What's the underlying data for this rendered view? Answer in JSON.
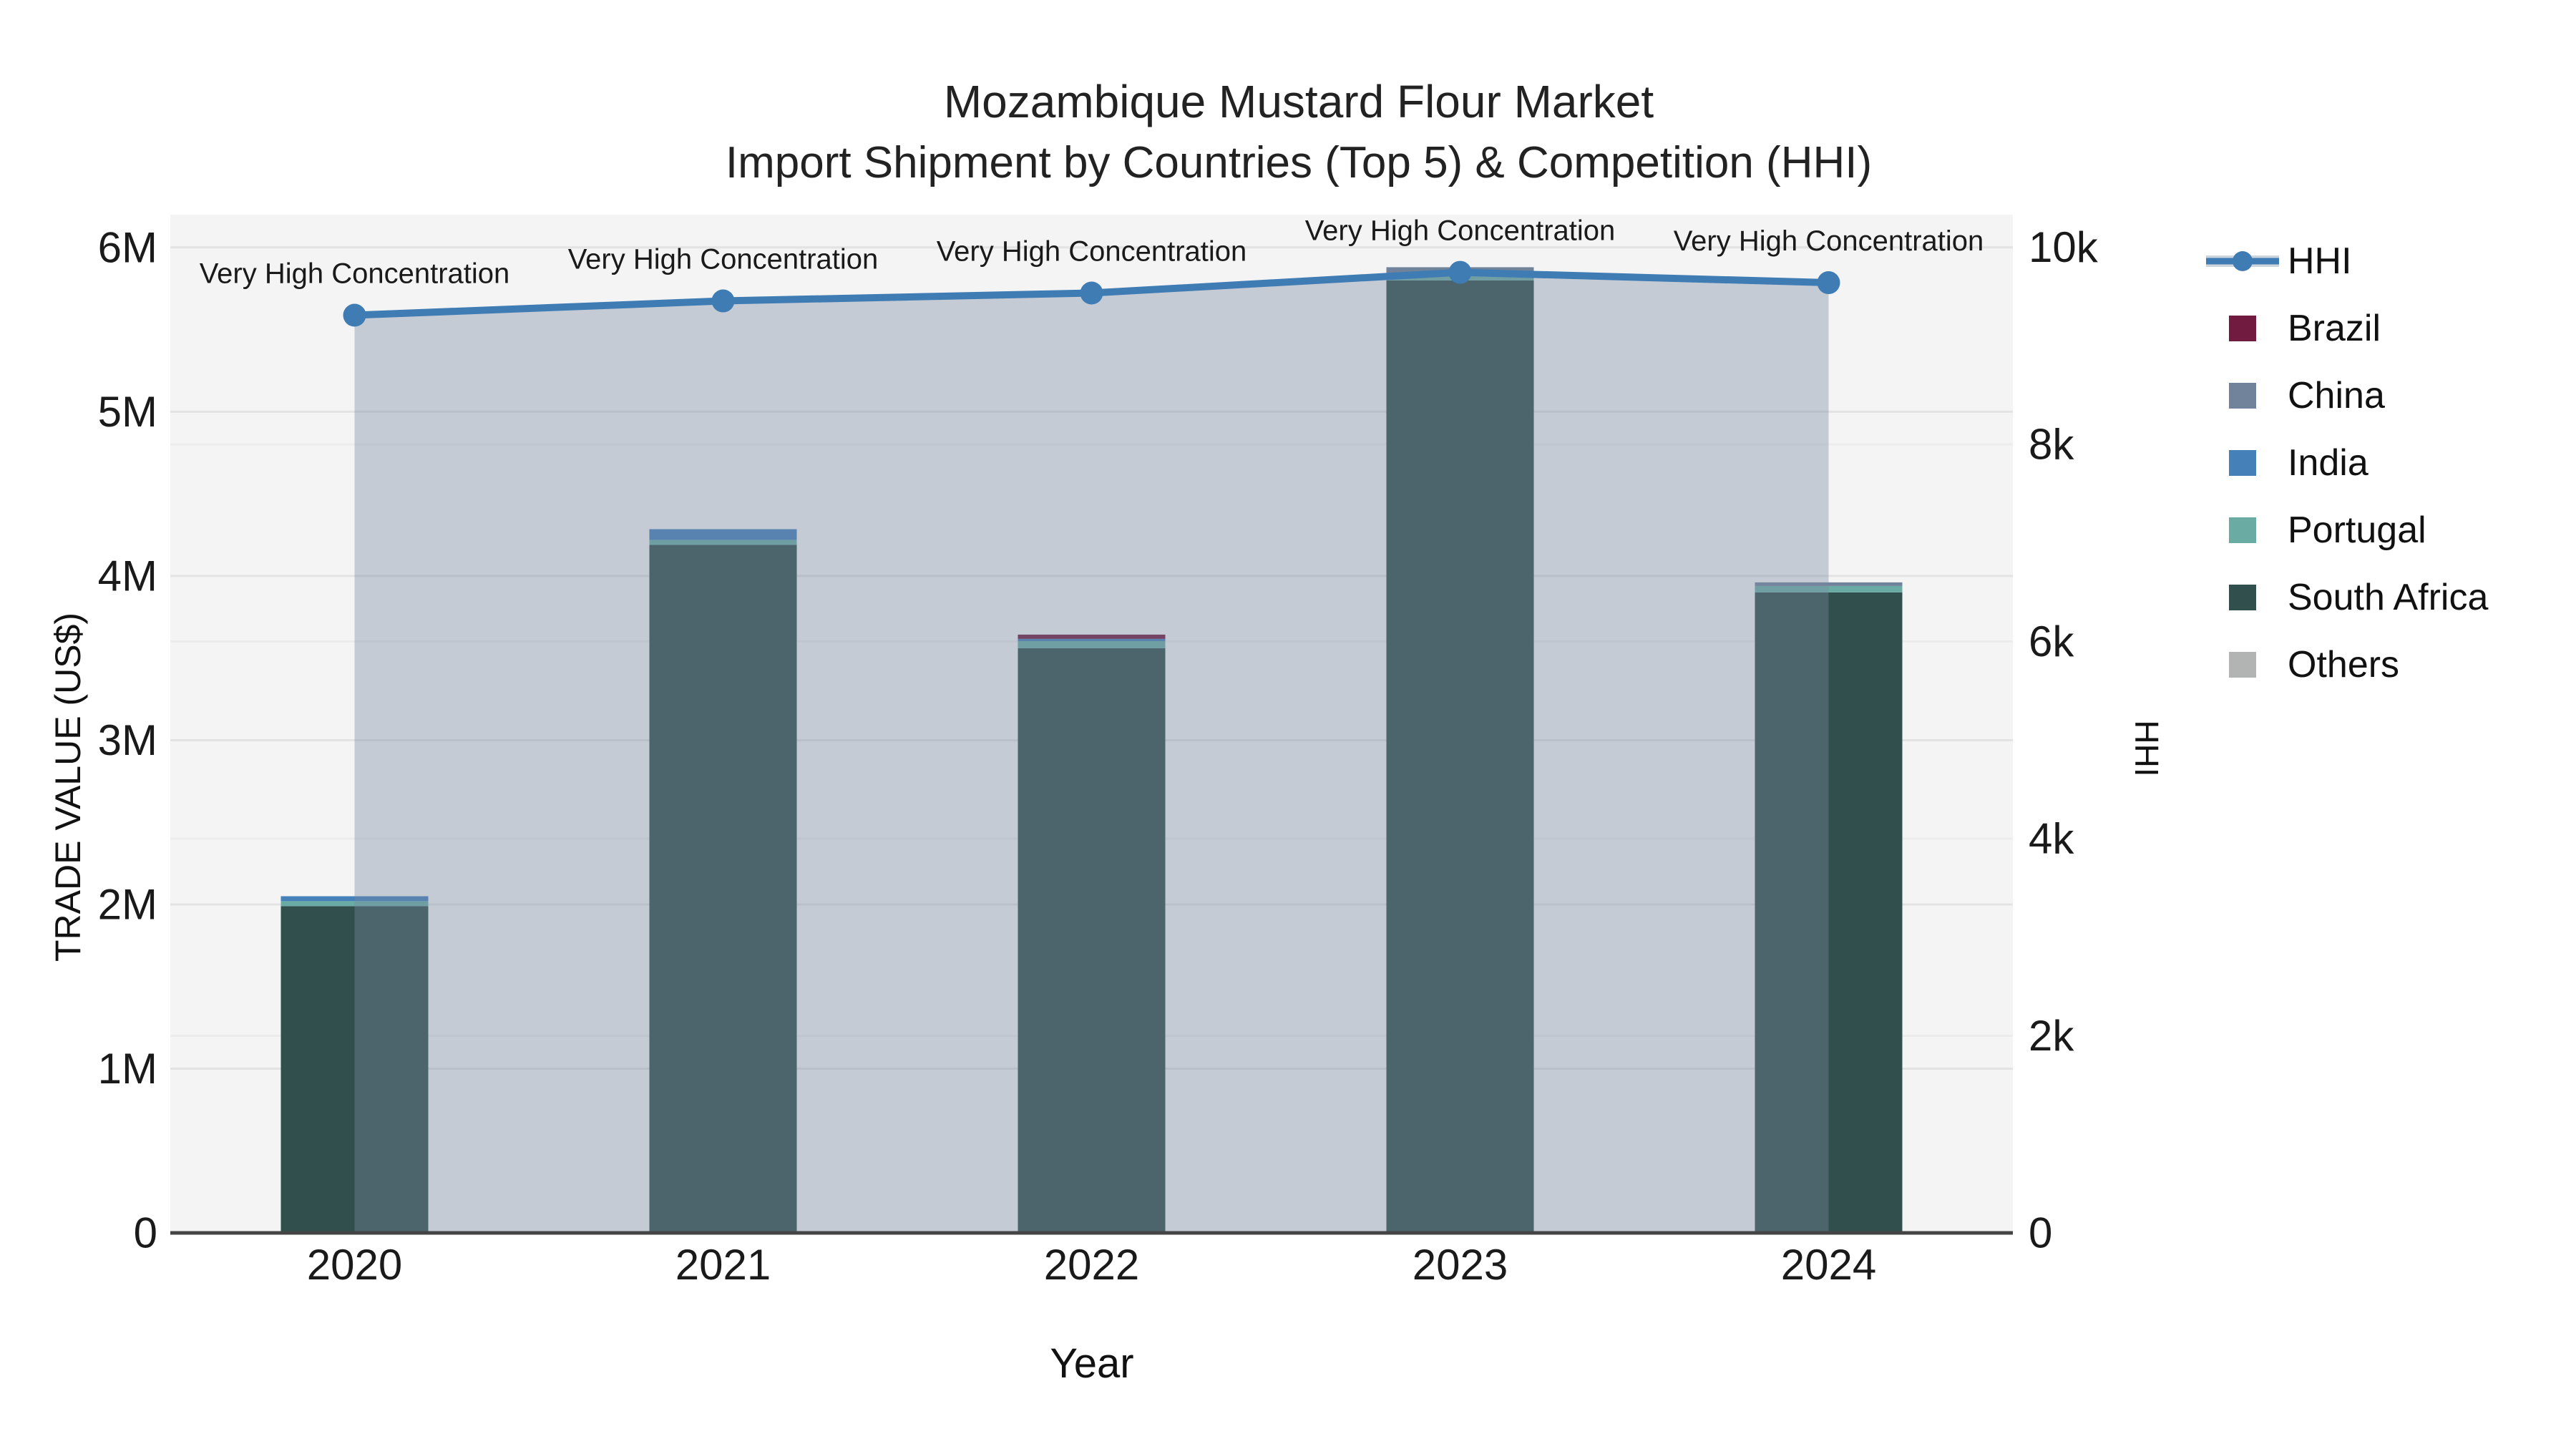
{
  "title": {
    "line1": "Mozambique Mustard Flour Market",
    "line2": "Import Shipment by Countries (Top 5) & Competition (HHI)"
  },
  "axes": {
    "left": {
      "title": "TRADE VALUE (US$)",
      "tick_labels": [
        "0",
        "1M",
        "2M",
        "3M",
        "4M",
        "5M",
        "6M"
      ],
      "tick_values": [
        0,
        1000000,
        2000000,
        3000000,
        4000000,
        5000000,
        6000000
      ],
      "max": 6200000
    },
    "right": {
      "title": "HHI",
      "tick_labels": [
        "0",
        "2k",
        "4k",
        "6k",
        "8k",
        "10k"
      ],
      "tick_values": [
        0,
        2000,
        4000,
        6000,
        8000,
        10000
      ],
      "max": 10330
    },
    "x": {
      "title": "Year",
      "categories": [
        "2020",
        "2021",
        "2022",
        "2023",
        "2024"
      ]
    }
  },
  "chart_data": {
    "type": "bar+line",
    "categories": [
      "2020",
      "2021",
      "2022",
      "2023",
      "2024"
    ],
    "bar_value_unit": "US$ trade value",
    "stack_order_note": "series listed bottom-to-top",
    "series": [
      {
        "name": "South Africa",
        "color": "#31504d",
        "values": [
          1990000,
          4190000,
          3560000,
          5800000,
          3900000
        ]
      },
      {
        "name": "Portugal",
        "color": "#6aaba4",
        "values": [
          30000,
          30000,
          43000,
          25000,
          39000
        ]
      },
      {
        "name": "India",
        "color": "#4580b9",
        "values": [
          30000,
          65000,
          14000,
          15000,
          0
        ]
      },
      {
        "name": "China",
        "color": "#71839a",
        "values": [
          0,
          0,
          0,
          40000,
          22000
        ]
      },
      {
        "name": "Brazil",
        "color": "#721b40",
        "values": [
          0,
          0,
          26000,
          0,
          0
        ]
      },
      {
        "name": "Others",
        "color": "#b2b4b4",
        "values": [
          0,
          0,
          0,
          0,
          0
        ]
      }
    ],
    "line_series": {
      "name": "HHI",
      "color": "#3f7cb4",
      "area_color": "rgba(122,138,162,0.38)",
      "values": [
        9310,
        9455,
        9535,
        9745,
        9640
      ]
    },
    "annotations": [
      "Very High Concentration",
      "Very High Concentration",
      "Very High Concentration",
      "Very High Concentration",
      "Very High Concentration"
    ],
    "ylim_left": [
      0,
      6200000
    ],
    "ylim_right": [
      0,
      10330
    ],
    "grid": true,
    "legend_position": "right"
  },
  "legend": {
    "items": [
      {
        "label": "HHI",
        "type": "line",
        "color": "#3f7cb4",
        "band_color": "#ccd4dc"
      },
      {
        "label": "Brazil",
        "type": "square",
        "color": "#721b40"
      },
      {
        "label": "China",
        "type": "square",
        "color": "#71839a"
      },
      {
        "label": "India",
        "type": "square",
        "color": "#4580b9"
      },
      {
        "label": "Portugal",
        "type": "square",
        "color": "#6aaba4"
      },
      {
        "label": "South Africa",
        "type": "square",
        "color": "#31504d"
      },
      {
        "label": "Others",
        "type": "square",
        "color": "#b2b4b4"
      }
    ]
  },
  "colors": {
    "plot_background": "#f4f4f4",
    "grid_left": "#e3e3e3",
    "grid_right": "#ececec",
    "axis_line": "#444444",
    "text": "#1a1a1a"
  }
}
